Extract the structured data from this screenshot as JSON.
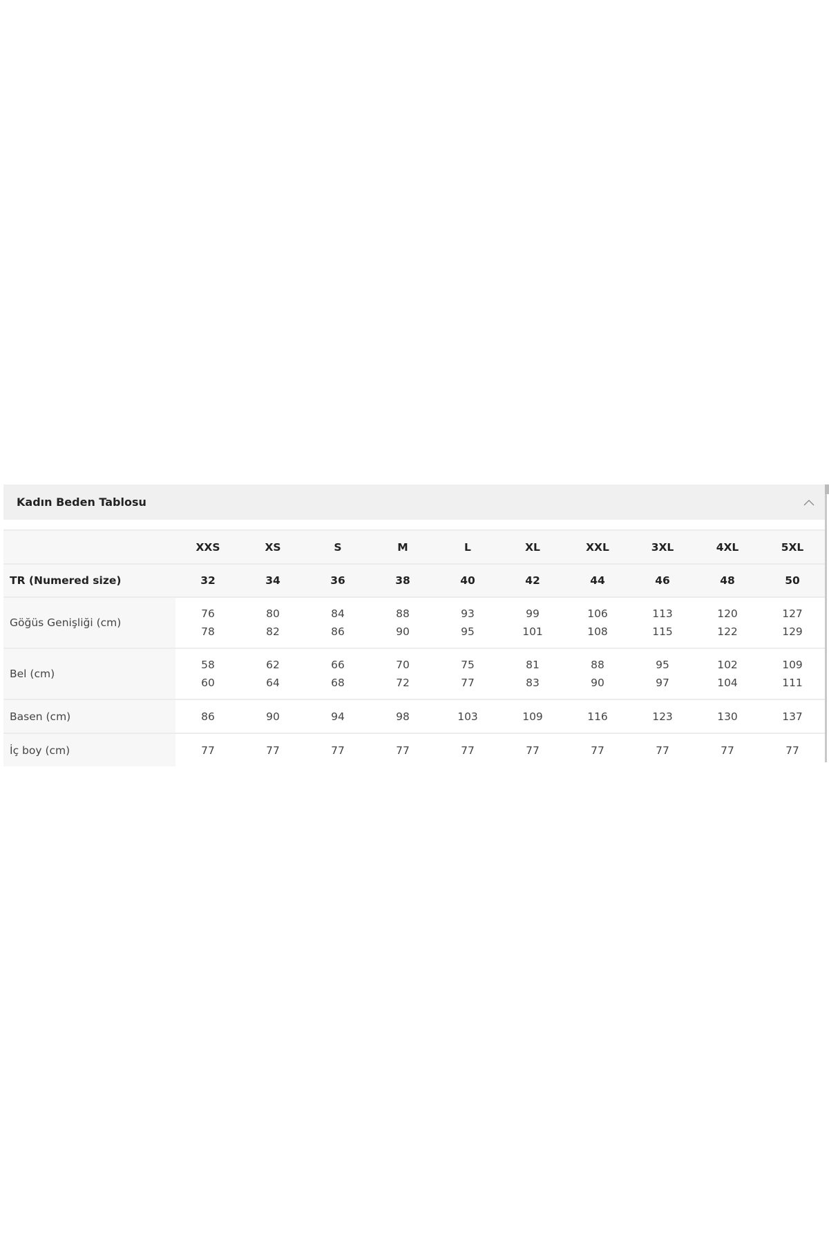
{
  "accordion": {
    "title": "Kadın Beden Tablosu",
    "expanded": true,
    "icon": "chevron-up-icon"
  },
  "table": {
    "sizes": [
      "XXS",
      "XS",
      "S",
      "M",
      "L",
      "XL",
      "XXL",
      "3XL",
      "4XL",
      "5XL"
    ],
    "rows": [
      {
        "label": "TR (Numered size)",
        "values": [
          [
            "32"
          ],
          [
            "34"
          ],
          [
            "36"
          ],
          [
            "38"
          ],
          [
            "40"
          ],
          [
            "42"
          ],
          [
            "44"
          ],
          [
            "46"
          ],
          [
            "48"
          ],
          [
            "50"
          ]
        ]
      },
      {
        "label": "Göğüs Genişliği (cm)",
        "values": [
          [
            "76",
            "78"
          ],
          [
            "80",
            "82"
          ],
          [
            "84",
            "86"
          ],
          [
            "88",
            "90"
          ],
          [
            "93",
            "95"
          ],
          [
            "99",
            "101"
          ],
          [
            "106",
            "108"
          ],
          [
            "113",
            "115"
          ],
          [
            "120",
            "122"
          ],
          [
            "127",
            "129"
          ]
        ]
      },
      {
        "label": "Bel (cm)",
        "values": [
          [
            "58",
            "60"
          ],
          [
            "62",
            "64"
          ],
          [
            "66",
            "68"
          ],
          [
            "70",
            "72"
          ],
          [
            "75",
            "77"
          ],
          [
            "81",
            "83"
          ],
          [
            "88",
            "90"
          ],
          [
            "95",
            "97"
          ],
          [
            "102",
            "104"
          ],
          [
            "109",
            "111"
          ]
        ]
      },
      {
        "label": "Basen (cm)",
        "values": [
          [
            "86"
          ],
          [
            "90"
          ],
          [
            "94"
          ],
          [
            "98"
          ],
          [
            "103"
          ],
          [
            "109"
          ],
          [
            "116"
          ],
          [
            "123"
          ],
          [
            "130"
          ],
          [
            "137"
          ]
        ]
      },
      {
        "label": "İç boy (cm)",
        "values": [
          [
            "77"
          ],
          [
            "77"
          ],
          [
            "77"
          ],
          [
            "77"
          ],
          [
            "77"
          ],
          [
            "77"
          ],
          [
            "77"
          ],
          [
            "77"
          ],
          [
            "77"
          ],
          [
            "77"
          ]
        ]
      }
    ]
  }
}
